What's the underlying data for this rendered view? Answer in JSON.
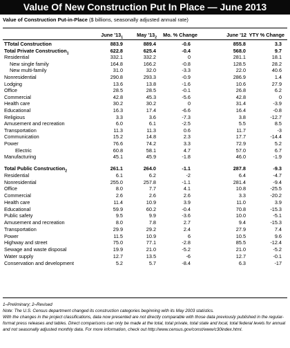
{
  "title": "Value Of New Construction Put In Place — June 2013",
  "subtitle_bold": "Value of Construction Put-in-Place",
  "subtitle_rest": " ($ billions, seasonally adjusted annual rate)",
  "headers": [
    "June '13",
    "May '13",
    "Mo. % Change",
    "June '12",
    "YTY % Change"
  ],
  "header_subs": [
    "1",
    "2",
    "",
    "",
    ""
  ],
  "rows": [
    {
      "label": "TTotal Construction",
      "sub": "",
      "v": [
        "883.9",
        "889.4",
        "-0.6",
        "855.8",
        "3.3"
      ],
      "bold": true,
      "indent": 0
    },
    {
      "label": "Total Private Construction",
      "sub": "1",
      "v": [
        "622.8",
        "625.4",
        "-0.4",
        "568.0",
        "9.7"
      ],
      "bold": true,
      "indent": 0
    },
    {
      "label": "Residential",
      "sub": "",
      "v": [
        "332.1",
        "332.2",
        "0",
        "281.1",
        "18.1"
      ],
      "bold": false,
      "indent": 0
    },
    {
      "label": "New single family",
      "sub": "",
      "v": [
        "164.8",
        "166.2",
        "-0.8",
        "128.5",
        "28.2"
      ],
      "bold": false,
      "indent": 1
    },
    {
      "label": "New multi-family",
      "sub": "",
      "v": [
        "31.0",
        "32.0",
        "-3.3",
        "22.0",
        "40.6"
      ],
      "bold": false,
      "indent": 1
    },
    {
      "label": "Nonresidential",
      "sub": "",
      "v": [
        "290.8",
        "293.3",
        "-0.9",
        "286.9",
        "1.4"
      ],
      "bold": false,
      "indent": 0
    },
    {
      "label": "Lodging",
      "sub": "",
      "v": [
        "13.6",
        "13.8",
        "-1.6",
        "10.6",
        "27.9"
      ],
      "bold": false,
      "indent": 0
    },
    {
      "label": "Office",
      "sub": "",
      "v": [
        "28.5",
        "28.5",
        "-0.1",
        "26.8",
        "6.2"
      ],
      "bold": false,
      "indent": 0
    },
    {
      "label": "Commercial",
      "sub": "",
      "v": [
        "42.8",
        "45.3",
        "-5.6",
        "42.8",
        "0"
      ],
      "bold": false,
      "indent": 0
    },
    {
      "label": "Health care",
      "sub": "",
      "v": [
        "30.2",
        "30.2",
        "0",
        "31.4",
        "-3.9"
      ],
      "bold": false,
      "indent": 0
    },
    {
      "label": "Educational",
      "sub": "",
      "v": [
        "16.3",
        "17.4",
        "-6.6",
        "16.4",
        "-0.8"
      ],
      "bold": false,
      "indent": 0
    },
    {
      "label": "Religious",
      "sub": "",
      "v": [
        "3.3",
        "3.6",
        "-7.3",
        "3.8",
        "-12.7"
      ],
      "bold": false,
      "indent": 0
    },
    {
      "label": "Amusement and recreation",
      "sub": "",
      "v": [
        "6.0",
        "6.1",
        "-2.5",
        "5.5",
        "8.5"
      ],
      "bold": false,
      "indent": 0
    },
    {
      "label": "Transportation",
      "sub": "",
      "v": [
        "11.3",
        "11.3",
        "0.6",
        "11.7",
        "-3"
      ],
      "bold": false,
      "indent": 0
    },
    {
      "label": "Communication",
      "sub": "",
      "v": [
        "15.2",
        "14.8",
        "2.3",
        "17.7",
        "-14.4"
      ],
      "bold": false,
      "indent": 0
    },
    {
      "label": "Power",
      "sub": "",
      "v": [
        "76.6",
        "74.2",
        "3.3",
        "72.9",
        "5.2"
      ],
      "bold": false,
      "indent": 0
    },
    {
      "label": "Electric",
      "sub": "",
      "v": [
        "60.8",
        "58.1",
        "4.7",
        "57.0",
        "6.7"
      ],
      "bold": false,
      "indent": 2
    },
    {
      "label": "Manufacturing",
      "sub": "",
      "v": [
        "45.1",
        "45.9",
        "-1.8",
        "46.0",
        "-1.9"
      ],
      "bold": false,
      "indent": 0
    }
  ],
  "rows2": [
    {
      "label": "Total Public Construction",
      "sub": "2",
      "v": [
        "261.1",
        "264.0",
        "-1.1",
        "287.8",
        "-9.3"
      ],
      "bold": true,
      "indent": 0
    },
    {
      "label": "Residential",
      "sub": "",
      "v": [
        "6.1",
        "6.2",
        "-2",
        "6.4",
        "-4.7"
      ],
      "bold": false,
      "indent": 0
    },
    {
      "label": "Nonresidential",
      "sub": "",
      "v": [
        "255.0",
        "257.8",
        "-1.1",
        "281.4",
        "-9.4"
      ],
      "bold": false,
      "indent": 0
    },
    {
      "label": "Office",
      "sub": "",
      "v": [
        "8.0",
        "7.7",
        "4.1",
        "10.8",
        "-25.5"
      ],
      "bold": false,
      "indent": 0
    },
    {
      "label": "Commercial",
      "sub": "",
      "v": [
        "2.6",
        "2.6",
        "2.6",
        "3.3",
        "-20.2"
      ],
      "bold": false,
      "indent": 0
    },
    {
      "label": "Health care",
      "sub": "",
      "v": [
        "11.4",
        "10.9",
        "3.9",
        "11.0",
        "3.9"
      ],
      "bold": false,
      "indent": 0
    },
    {
      "label": "Educational",
      "sub": "",
      "v": [
        "59.9",
        "60.2",
        "-0.4",
        "70.8",
        "-15.3"
      ],
      "bold": false,
      "indent": 0
    },
    {
      "label": "Public safety",
      "sub": "",
      "v": [
        "9.5",
        "9.9",
        "-3.6",
        "10.0",
        "-5.1"
      ],
      "bold": false,
      "indent": 0
    },
    {
      "label": "Amusement and recreation",
      "sub": "",
      "v": [
        "8.0",
        "7.8",
        "2.7",
        "9.4",
        "-15.3"
      ],
      "bold": false,
      "indent": 0
    },
    {
      "label": "Transportation",
      "sub": "",
      "v": [
        "29.9",
        "29.2",
        "2.4",
        "27.9",
        "7.4"
      ],
      "bold": false,
      "indent": 0
    },
    {
      "label": "Power",
      "sub": "",
      "v": [
        "11.5",
        "10.9",
        "6",
        "10.5",
        "9.6"
      ],
      "bold": false,
      "indent": 0
    },
    {
      "label": "Highway and street",
      "sub": "",
      "v": [
        "75.0",
        "77.1",
        "-2.8",
        "85.5",
        "-12.4"
      ],
      "bold": false,
      "indent": 0
    },
    {
      "label": "Sewage and waste disposal",
      "sub": "",
      "v": [
        "19.9",
        "21.0",
        "-5.2",
        "21.0",
        "-5.2"
      ],
      "bold": false,
      "indent": 0
    },
    {
      "label": "Water supply",
      "sub": "",
      "v": [
        "12.7",
        "13.5",
        "-6",
        "12.7",
        "-0.1"
      ],
      "bold": false,
      "indent": 0
    },
    {
      "label": "Conservation and development",
      "sub": "",
      "v": [
        "5.2",
        "5.7",
        "-8.4",
        "6.3",
        "-17"
      ],
      "bold": false,
      "indent": 0
    }
  ],
  "notes": {
    "footnote": "1–Preliminary; 2–Revised",
    "note1": "Note: The U.S. Census department changed its construction categories beginning with its May 2003 statistics.",
    "note2": "With the changes in the project classifications, data now presented are not directly comparable with those data previously published in the regular-format press releases and tables. Direct comparisons can only be made at the total, total private, total state and local, total federal levels for annual and not seasonally adjusted monthly data. For more information, check out http://www.census.gov/const/www/c30index.html."
  }
}
